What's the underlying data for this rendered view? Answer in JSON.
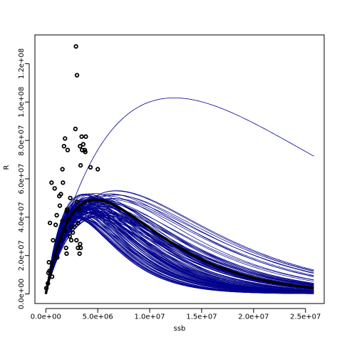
{
  "chart_data": {
    "type": "scatter",
    "title": "",
    "xlabel": "ssb",
    "ylabel": "R",
    "xlim": [
      -1050000.0,
      26800000.0
    ],
    "ylim": [
      -5000000.0,
      135000000.0
    ],
    "x_ticks": [
      0,
      5000000.0,
      10000000.0,
      15000000.0,
      20000000.0,
      25000000.0
    ],
    "x_tick_labels": [
      "0.0e+00",
      "5.0e+06",
      "1.0e+07",
      "1.5e+07",
      "2.0e+07",
      "2.5e+07"
    ],
    "y_ticks": [
      0,
      20000000.0,
      40000000.0,
      60000000.0,
      80000000.0,
      100000000.0,
      120000000.0
    ],
    "y_tick_labels": [
      "0.0e+00",
      "2.0e+07",
      "4.0e+07",
      "6.0e+07",
      "8.0e+07",
      "1.0e+08",
      "1.2e+08"
    ],
    "x_max_curve": 25800000.0,
    "curve_color": "#00008b",
    "point_color": "#000000",
    "mean_curve": {
      "a": 28.0,
      "b": 2.1e-07
    },
    "outlier_curve": {
      "a": 22.5,
      "b": 8.1e-08
    },
    "curve_ensemble": {
      "count": 120,
      "a_range": [
        20,
        40
      ],
      "b_range": [
        1.3e-07,
        3.6e-07
      ]
    },
    "points": [
      [
        50000.0,
        3000000.0
      ],
      [
        200000.0,
        5500000.0
      ],
      [
        250000.0,
        11000000.0
      ],
      [
        300000.0,
        16500000.0
      ],
      [
        350000.0,
        12000000.0
      ],
      [
        400000.0,
        37000000.0
      ],
      [
        550000.0,
        58000000.0
      ],
      [
        600000.0,
        9000000.0
      ],
      [
        700000.0,
        28000000.0
      ],
      [
        850000.0,
        55000000.0
      ],
      [
        950000.0,
        36000000.0
      ],
      [
        1050000.0,
        41000000.0
      ],
      [
        1100000.0,
        19000000.0
      ],
      [
        1200000.0,
        24000000.0
      ],
      [
        1300000.0,
        51000000.0
      ],
      [
        1350000.0,
        46000000.0
      ],
      [
        1450000.0,
        52000000.0
      ],
      [
        1550000.0,
        28000000.0
      ],
      [
        1600000.0,
        38000000.0
      ],
      [
        1650000.0,
        58000000.0
      ],
      [
        1600000.0,
        65000000.0
      ],
      [
        1750000.0,
        77000000.0
      ],
      [
        1850000.0,
        81000000.0
      ],
      [
        1850000.0,
        33000000.0
      ],
      [
        1950000.0,
        24000000.0
      ],
      [
        2000000.0,
        21000000.0
      ],
      [
        2000000.0,
        43000000.0
      ],
      [
        2050000.0,
        44000000.0
      ],
      [
        2100000.0,
        75000000.0
      ],
      [
        2200000.0,
        39000000.0
      ],
      [
        2300000.0,
        30000000.0
      ],
      [
        2350000.0,
        50000000.0
      ],
      [
        2450000.0,
        28000000.0
      ],
      [
        2500000.0,
        35000000.0
      ],
      [
        2600000.0,
        32000000.0
      ],
      [
        2750000.0,
        35000000.0
      ],
      [
        2850000.0,
        86000000.0
      ],
      [
        2900000.0,
        129000000.0
      ],
      [
        2950000.0,
        28000000.0
      ],
      [
        3000000.0,
        114000000.0
      ],
      [
        3000000.0,
        48000000.0
      ],
      [
        3100000.0,
        37000000.0
      ],
      [
        3100000.0,
        24000000.0
      ],
      [
        3200000.0,
        44000000.0
      ],
      [
        3250000.0,
        21000000.0
      ],
      [
        3300000.0,
        26000000.0
      ],
      [
        3350000.0,
        24000000.0
      ],
      [
        3300000.0,
        77000000.0
      ],
      [
        3350000.0,
        67000000.0
      ],
      [
        3450000.0,
        82000000.0
      ],
      [
        3500000.0,
        75000000.0
      ],
      [
        3600000.0,
        78000000.0
      ],
      [
        3750000.0,
        75000000.0
      ],
      [
        3800000.0,
        74000000.0
      ],
      [
        3850000.0,
        82000000.0
      ],
      [
        4300000.0,
        66000000.0
      ],
      [
        5000000.0,
        65000000.0
      ]
    ]
  }
}
